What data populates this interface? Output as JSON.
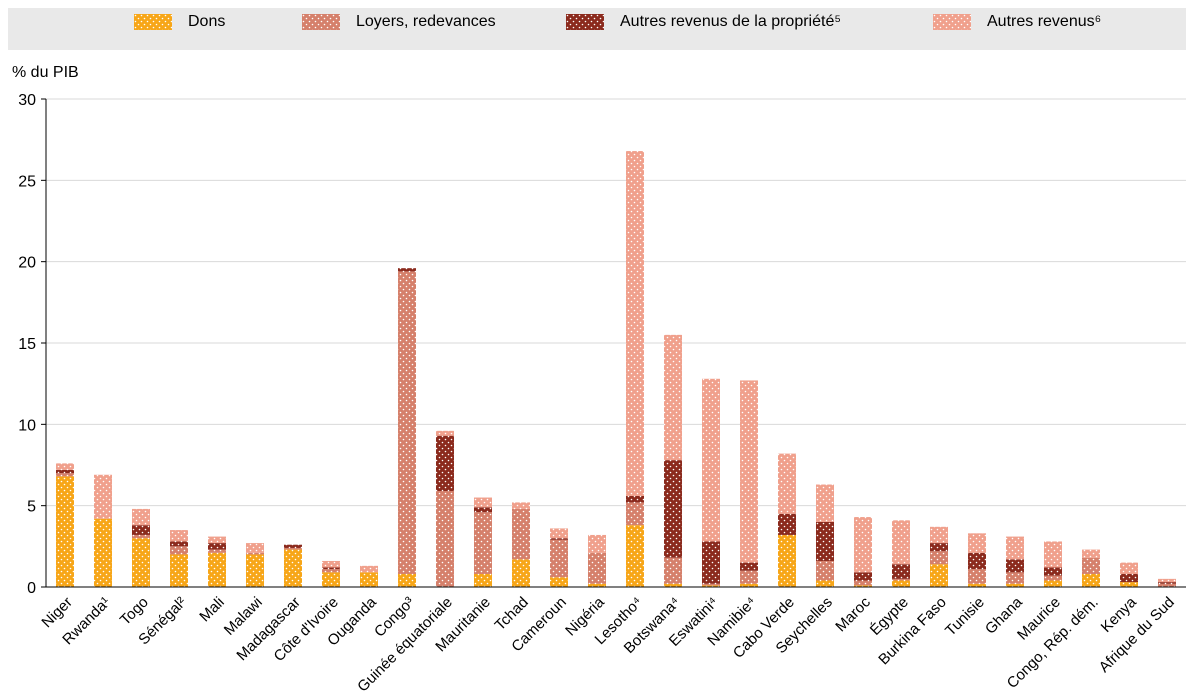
{
  "legend": {
    "items": [
      {
        "label": "Dons",
        "color": "#f7a618",
        "pattern": "dots-white"
      },
      {
        "label": "Loyers, redevances",
        "color": "#d5806b",
        "pattern": "dots-white"
      },
      {
        "label": "Autres revenus de la propriété⁵",
        "color": "#8b2a1d",
        "pattern": "dots-white"
      },
      {
        "label": "Autres revenus⁶",
        "color": "#f0a08c",
        "pattern": "dots-white"
      }
    ]
  },
  "chart_data": {
    "type": "bar",
    "stacked": true,
    "ylabel": "% du PIB",
    "ylim": [
      0,
      30
    ],
    "yticks": [
      0,
      5,
      10,
      15,
      20,
      25,
      30
    ],
    "categories": [
      "Niger",
      "Rwanda¹",
      "Togo",
      "Sénégal²",
      "Mali",
      "Malawi",
      "Madagascar",
      "Côte d'Ivoire",
      "Ouganda",
      "Congo³",
      "Guinée équatoriale",
      "Mauritanie",
      "Tchad",
      "Cameroun",
      "Nigéria",
      "Lesotho⁴",
      "Botswana⁴",
      "Eswatini⁴",
      "Namibie⁴",
      "Cabo Verde",
      "Seychelles",
      "Maroc",
      "Égypte",
      "Burkina Faso",
      "Tunisie",
      "Ghana",
      "Maurice",
      "Congo, Rép. dém.",
      "Kenya",
      "Afrique du Sud"
    ],
    "series": [
      {
        "name": "Dons",
        "values": [
          6.8,
          4.2,
          3.0,
          2.0,
          2.1,
          2.0,
          2.3,
          0.9,
          0.9,
          0.8,
          0.0,
          0.8,
          1.7,
          0.6,
          0.2,
          3.8,
          0.2,
          0.1,
          0.2,
          3.2,
          0.4,
          0.1,
          0.4,
          1.4,
          0.2,
          0.2,
          0.4,
          0.8,
          0.3,
          0.0
        ]
      },
      {
        "name": "Loyers, redevances",
        "values": [
          0.2,
          0.0,
          0.2,
          0.5,
          0.2,
          0.1,
          0.1,
          0.2,
          0.0,
          18.6,
          5.9,
          3.8,
          3.1,
          2.3,
          1.9,
          1.4,
          1.6,
          0.1,
          0.8,
          0.0,
          1.2,
          0.3,
          0.1,
          0.8,
          0.9,
          0.7,
          0.3,
          1.0,
          0.0,
          0.2
        ]
      },
      {
        "name": "Autres revenus de la propriété⁵",
        "values": [
          0.2,
          0.0,
          0.6,
          0.3,
          0.4,
          0.0,
          0.2,
          0.1,
          0.0,
          0.2,
          3.4,
          0.3,
          0.0,
          0.1,
          0.0,
          0.4,
          6.0,
          2.6,
          0.5,
          1.3,
          2.4,
          0.5,
          0.9,
          0.5,
          1.0,
          0.8,
          0.5,
          0.0,
          0.5,
          0.1
        ]
      },
      {
        "name": "Autres revenus⁶",
        "values": [
          0.4,
          2.7,
          1.0,
          0.7,
          0.4,
          0.6,
          0.0,
          0.4,
          0.4,
          0.0,
          0.3,
          0.6,
          0.4,
          0.6,
          1.1,
          21.2,
          7.7,
          10.0,
          11.2,
          3.7,
          2.3,
          3.4,
          2.7,
          1.0,
          1.2,
          1.4,
          1.6,
          0.5,
          0.7,
          0.2
        ]
      }
    ]
  }
}
